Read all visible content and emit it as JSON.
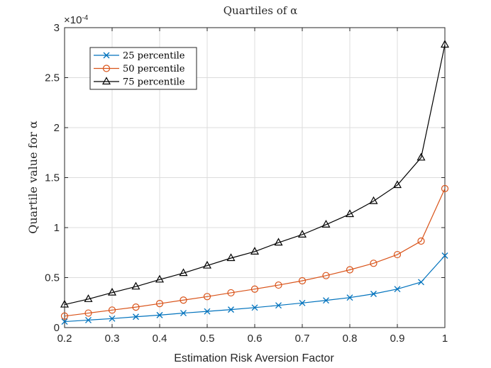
{
  "chart_data": {
    "type": "line",
    "title": "Quartiles of α",
    "xlabel": "Estimation Risk Aversion Factor",
    "ylabel": "Quartile value for α",
    "exponent_label": "×10",
    "exponent_power": "-4",
    "xlim": [
      0.2,
      1.0
    ],
    "ylim": [
      0,
      3
    ],
    "xticks": [
      0.2,
      0.3,
      0.4,
      0.5,
      0.6,
      0.7,
      0.8,
      0.9,
      1.0
    ],
    "xtick_labels": [
      "0.2",
      "0.3",
      "0.4",
      "0.5",
      "0.6",
      "0.7",
      "0.8",
      "0.9",
      "1"
    ],
    "yticks": [
      0,
      0.5,
      1,
      1.5,
      2,
      2.5,
      3
    ],
    "ytick_labels": [
      "0",
      "0.5",
      "1",
      "1.5",
      "2",
      "2.5",
      "3"
    ],
    "grid": true,
    "legend_position": "top-left",
    "x": [
      0.2,
      0.25,
      0.3,
      0.35,
      0.4,
      0.45,
      0.5,
      0.55,
      0.6,
      0.65,
      0.7,
      0.75,
      0.8,
      0.85,
      0.9,
      0.95,
      1.0
    ],
    "series": [
      {
        "name": "25 percentile",
        "color": "#0072BD",
        "marker": "x",
        "values": [
          0.06,
          0.075,
          0.09,
          0.108,
          0.125,
          0.145,
          0.162,
          0.18,
          0.2,
          0.222,
          0.246,
          0.272,
          0.3,
          0.337,
          0.385,
          0.455,
          0.72
        ]
      },
      {
        "name": "50 percentile",
        "color": "#D95319",
        "marker": "o",
        "values": [
          0.115,
          0.145,
          0.175,
          0.205,
          0.24,
          0.275,
          0.31,
          0.348,
          0.385,
          0.425,
          0.468,
          0.52,
          0.578,
          0.643,
          0.73,
          0.865,
          1.39
        ]
      },
      {
        "name": "75 percentile",
        "color": "#000000",
        "marker": "triangle",
        "values": [
          0.23,
          0.285,
          0.35,
          0.41,
          0.48,
          0.545,
          0.62,
          0.695,
          0.76,
          0.85,
          0.93,
          1.03,
          1.135,
          1.265,
          1.425,
          1.7,
          2.83
        ]
      }
    ]
  }
}
